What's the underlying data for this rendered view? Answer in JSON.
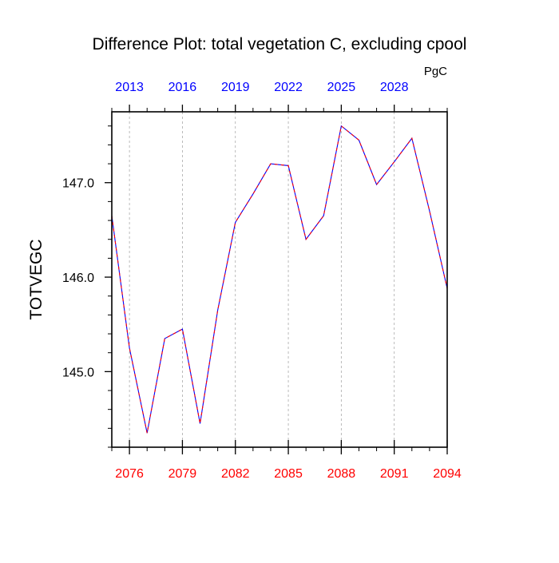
{
  "chart_data": {
    "type": "line",
    "title": "Difference Plot: total vegetation C, excluding cpool",
    "units": "PgC",
    "ylabel": "TOTVEGC",
    "xlabel": "",
    "x": [
      2075,
      2076,
      2077,
      2078,
      2079,
      2080,
      2081,
      2082,
      2083,
      2084,
      2085,
      2086,
      2087,
      2088,
      2089,
      2090,
      2091,
      2092,
      2093,
      2094
    ],
    "series": [
      {
        "values": [
          146.65,
          145.25,
          144.35,
          145.35,
          145.45,
          144.45,
          145.65,
          146.58,
          146.88,
          147.2,
          147.18,
          146.4,
          146.65,
          147.6,
          147.45,
          146.98,
          147.22,
          147.47,
          146.7,
          145.88
        ]
      }
    ],
    "xlim": [
      2075,
      2094
    ],
    "ylim": [
      144.2,
      147.75
    ],
    "bottom_axis": {
      "ticks": [
        2076,
        2079,
        2082,
        2085,
        2088,
        2091,
        2094
      ],
      "labels": [
        "2076",
        "2079",
        "2082",
        "2085",
        "2088",
        "2091",
        "2094"
      ],
      "color": "#ff0000"
    },
    "top_axis": {
      "ticks": [
        2076,
        2079,
        2082,
        2085,
        2088,
        2091
      ],
      "labels": [
        "2013",
        "2016",
        "2019",
        "2022",
        "2025",
        "2028"
      ],
      "color": "#0000ff"
    },
    "y_axis": {
      "ticks": [
        145,
        146,
        147
      ],
      "labels": [
        "145.0",
        "146.0",
        "147.0"
      ]
    },
    "grid": "vertical dashed at major x ticks",
    "line_style": "dashed",
    "colors": {
      "line_dash_a": "#ff0000",
      "line_dash_b": "#0000ff",
      "grid": "#aaaaaa",
      "axis": "#000000"
    }
  }
}
